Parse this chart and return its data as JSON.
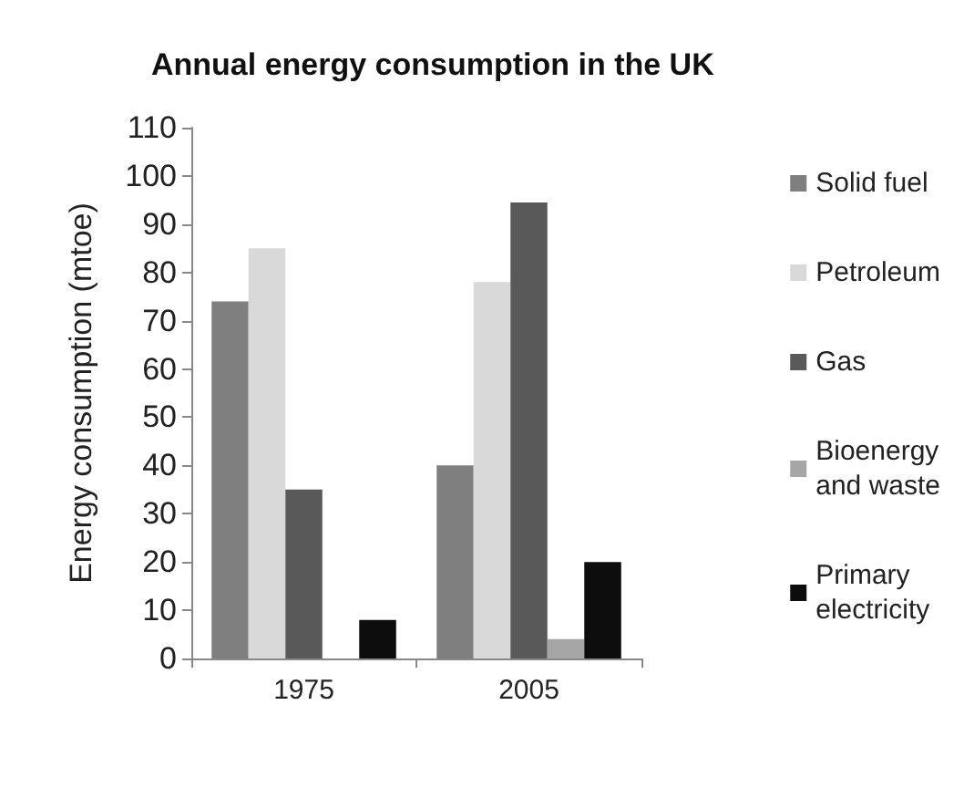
{
  "chart_data": {
    "type": "bar",
    "title": "Annual energy consumption in the UK",
    "ylabel": "Energy consumption (mtoe)",
    "categories": [
      "1975",
      "2005"
    ],
    "series": [
      {
        "name": "Solid fuel",
        "color": "#7f7f7f",
        "values": [
          74,
          40
        ]
      },
      {
        "name": "Petroleum",
        "color": "#d9d9d9",
        "values": [
          85,
          78
        ]
      },
      {
        "name": "Gas",
        "color": "#595959",
        "values": [
          35,
          94.5
        ]
      },
      {
        "name": "Bioenergy\nand waste",
        "color": "#a6a6a6",
        "values": [
          0,
          4
        ]
      },
      {
        "name": "Primary\nelectricity",
        "color": "#0d0d0d",
        "values": [
          8,
          20
        ]
      }
    ],
    "ylim": [
      0,
      110
    ],
    "yticks": [
      0,
      10,
      20,
      30,
      40,
      50,
      60,
      70,
      80,
      90,
      100,
      110
    ],
    "grid": false,
    "legend": "right"
  }
}
